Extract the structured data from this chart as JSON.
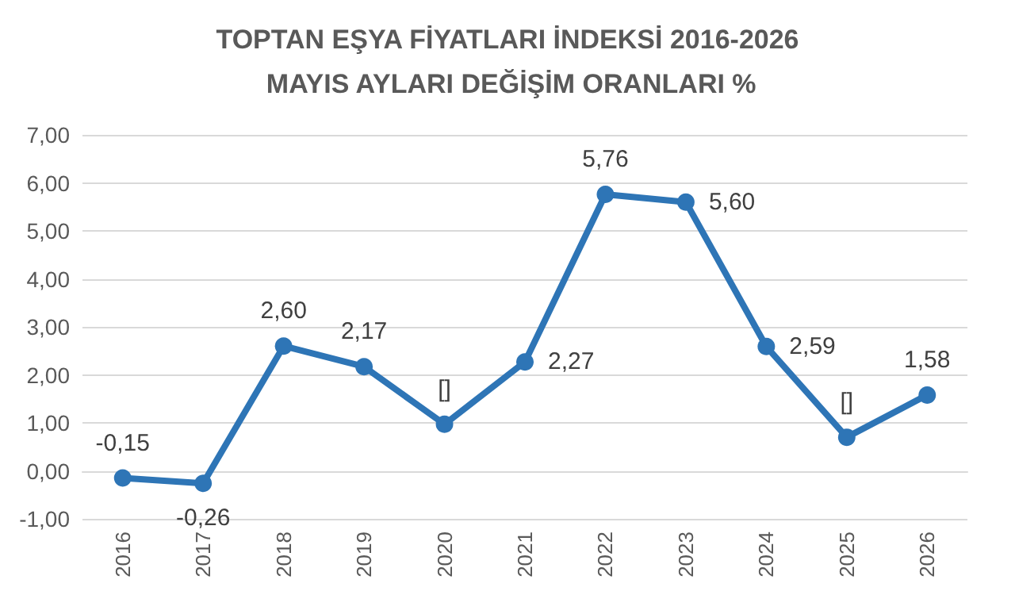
{
  "chart_data": {
    "type": "line",
    "title": "TOPTAN EŞYA FİYATLARI İNDEKSİ 2016-2026 MAYIS AYLARI DEĞİŞİM ORANLARI %",
    "categories": [
      "2016",
      "2017",
      "2018",
      "2019",
      "2020",
      "2021",
      "2022",
      "2023",
      "2024",
      "2025",
      "2026"
    ],
    "series": [
      {
        "color": "#2e75b6",
        "values": [
          -0.15,
          -0.26,
          2.6,
          2.17,
          0.97,
          2.27,
          5.76,
          5.6,
          2.59,
          0.7,
          1.58
        ],
        "value_labels": [
          "-0,15",
          "-0,26",
          "2,60",
          "2,17",
          "[]",
          "2,27",
          "5,76",
          "5,60",
          "2,59",
          "[]",
          "1,58"
        ]
      }
    ],
    "ylim": [
      -1,
      7
    ],
    "yticks": [
      {
        "value": -1,
        "label": "-1,00"
      },
      {
        "value": 0,
        "label": "0,00"
      },
      {
        "value": 1,
        "label": "1,00"
      },
      {
        "value": 2,
        "label": "2,00"
      },
      {
        "value": 3,
        "label": "3,00"
      },
      {
        "value": 4,
        "label": "4,00"
      },
      {
        "value": 5,
        "label": "5,00"
      },
      {
        "value": 6,
        "label": "6,00"
      },
      {
        "value": 7,
        "label": "7,00"
      }
    ],
    "grid": "y",
    "marker": "circle",
    "line_style": "solid"
  }
}
